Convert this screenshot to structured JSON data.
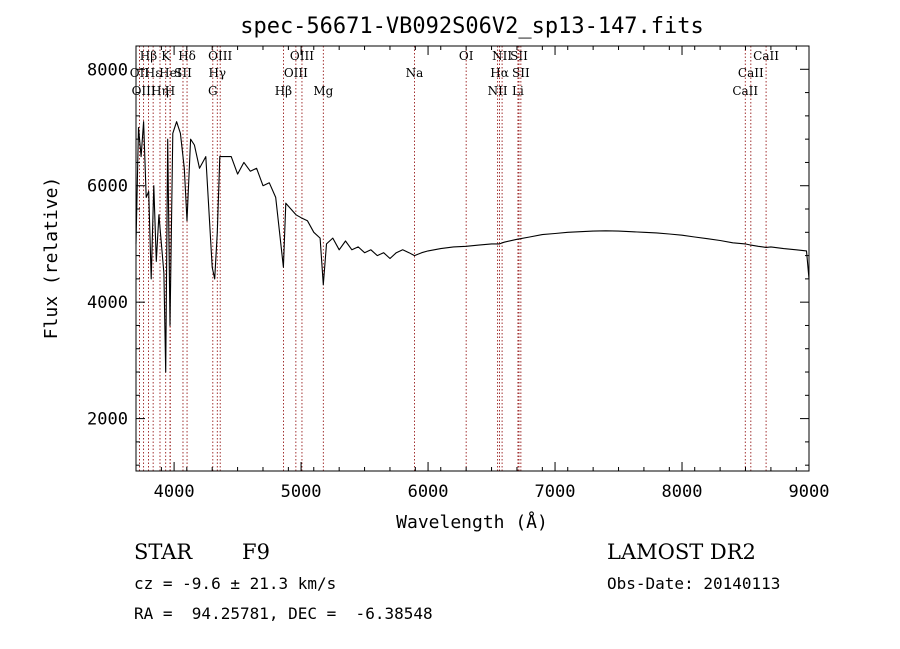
{
  "chart_data": {
    "type": "line",
    "title": "spec-56671-VB092S06V2_sp13-147.fits",
    "xlabel": "Wavelength (Å)",
    "ylabel": "Flux (relative)",
    "xlim": [
      3700,
      9000
    ],
    "ylim": [
      1100,
      8400
    ],
    "xticks": [
      4000,
      5000,
      6000,
      7000,
      8000,
      9000
    ],
    "yticks": [
      2000,
      4000,
      6000,
      8000
    ],
    "grid": false,
    "legend": "none",
    "series": [
      {
        "color": "#000000",
        "x": [
          3700,
          3720,
          3740,
          3760,
          3780,
          3800,
          3820,
          3840,
          3860,
          3880,
          3900,
          3920,
          3934,
          3950,
          3968,
          3990,
          4020,
          4050,
          4080,
          4102,
          4130,
          4160,
          4200,
          4250,
          4300,
          4320,
          4340,
          4360,
          4400,
          4450,
          4500,
          4550,
          4600,
          4650,
          4700,
          4750,
          4800,
          4861,
          4880,
          4920,
          4960,
          5000,
          5050,
          5100,
          5150,
          5175,
          5200,
          5250,
          5300,
          5350,
          5400,
          5450,
          5500,
          5550,
          5600,
          5650,
          5700,
          5750,
          5800,
          5850,
          5893,
          5950,
          6000,
          6100,
          6200,
          6300,
          6400,
          6500,
          6563,
          6600,
          6700,
          6800,
          6900,
          7000,
          7100,
          7200,
          7300,
          7400,
          7500,
          7600,
          7700,
          7800,
          7900,
          8000,
          8100,
          8200,
          8300,
          8400,
          8498,
          8542,
          8600,
          8662,
          8700,
          8800,
          8900,
          8980,
          9000
        ],
        "y": [
          5000,
          7000,
          6500,
          7100,
          5800,
          5900,
          4400,
          6000,
          4700,
          5500,
          5000,
          4500,
          2800,
          6800,
          3600,
          6900,
          7100,
          6900,
          6300,
          5400,
          6800,
          6700,
          6300,
          6500,
          4600,
          4400,
          5200,
          6500,
          6500,
          6500,
          6200,
          6400,
          6250,
          6300,
          6000,
          6050,
          5800,
          4600,
          5700,
          5600,
          5500,
          5450,
          5400,
          5200,
          5100,
          4300,
          5000,
          5100,
          4900,
          5050,
          4900,
          4950,
          4850,
          4900,
          4800,
          4850,
          4750,
          4850,
          4900,
          4850,
          4800,
          4850,
          4880,
          4920,
          4950,
          4960,
          4980,
          5000,
          5000,
          5030,
          5080,
          5120,
          5160,
          5180,
          5200,
          5210,
          5220,
          5225,
          5220,
          5210,
          5200,
          5190,
          5170,
          5150,
          5120,
          5090,
          5060,
          5020,
          5000,
          4980,
          4960,
          4940,
          4950,
          4920,
          4900,
          4880,
          4400
        ]
      }
    ],
    "lines": [
      {
        "label": "Hβ",
        "x": 3798,
        "tier": 0
      },
      {
        "label": "OII",
        "x": 3727,
        "tier": 1
      },
      {
        "label": "OIII",
        "x": 3760,
        "tier": 2
      },
      {
        "label": "Hε",
        "x": 3835,
        "tier": 1
      },
      {
        "label": "Hη",
        "x": 3889,
        "tier": 2
      },
      {
        "label": "K",
        "x": 3934,
        "tier": 0
      },
      {
        "label": "HeI",
        "x": 3970,
        "tier": 1
      },
      {
        "label": "H",
        "x": 3968,
        "tier": 2
      },
      {
        "label": "SII",
        "x": 4070,
        "tier": 1
      },
      {
        "label": "Hδ",
        "x": 4102,
        "tier": 0
      },
      {
        "label": "OIII",
        "x": 4363,
        "tier": 0
      },
      {
        "label": "Hγ",
        "x": 4340,
        "tier": 1
      },
      {
        "label": "G",
        "x": 4305,
        "tier": 2
      },
      {
        "label": "Hβ",
        "x": 4861,
        "tier": 2
      },
      {
        "label": "OIII",
        "x": 5007,
        "tier": 0
      },
      {
        "label": "OIII",
        "x": 4959,
        "tier": 1
      },
      {
        "label": "Mg",
        "x": 5175,
        "tier": 2
      },
      {
        "label": "Na",
        "x": 5893,
        "tier": 1
      },
      {
        "label": "OI",
        "x": 6300,
        "tier": 0
      },
      {
        "label": "NII",
        "x": 6583,
        "tier": 0
      },
      {
        "label": "SII",
        "x": 6716,
        "tier": 0
      },
      {
        "label": "Hα",
        "x": 6563,
        "tier": 1
      },
      {
        "label": "SII",
        "x": 6731,
        "tier": 1
      },
      {
        "label": "NII",
        "x": 6548,
        "tier": 2
      },
      {
        "label": "Li",
        "x": 6708,
        "tier": 2
      },
      {
        "label": "CaII",
        "x": 8662,
        "tier": 0
      },
      {
        "label": "CaII",
        "x": 8542,
        "tier": 1
      },
      {
        "label": "CaII",
        "x": 8498,
        "tier": 2
      }
    ]
  },
  "info": {
    "class": "STAR",
    "subclass": "F9",
    "survey": "LAMOST DR2",
    "cz": "cz = -9.6 ± 21.3 km/s",
    "obs_date": "Obs-Date: 20140113",
    "radec": "RA =  94.25781, DEC =  -6.38548"
  }
}
